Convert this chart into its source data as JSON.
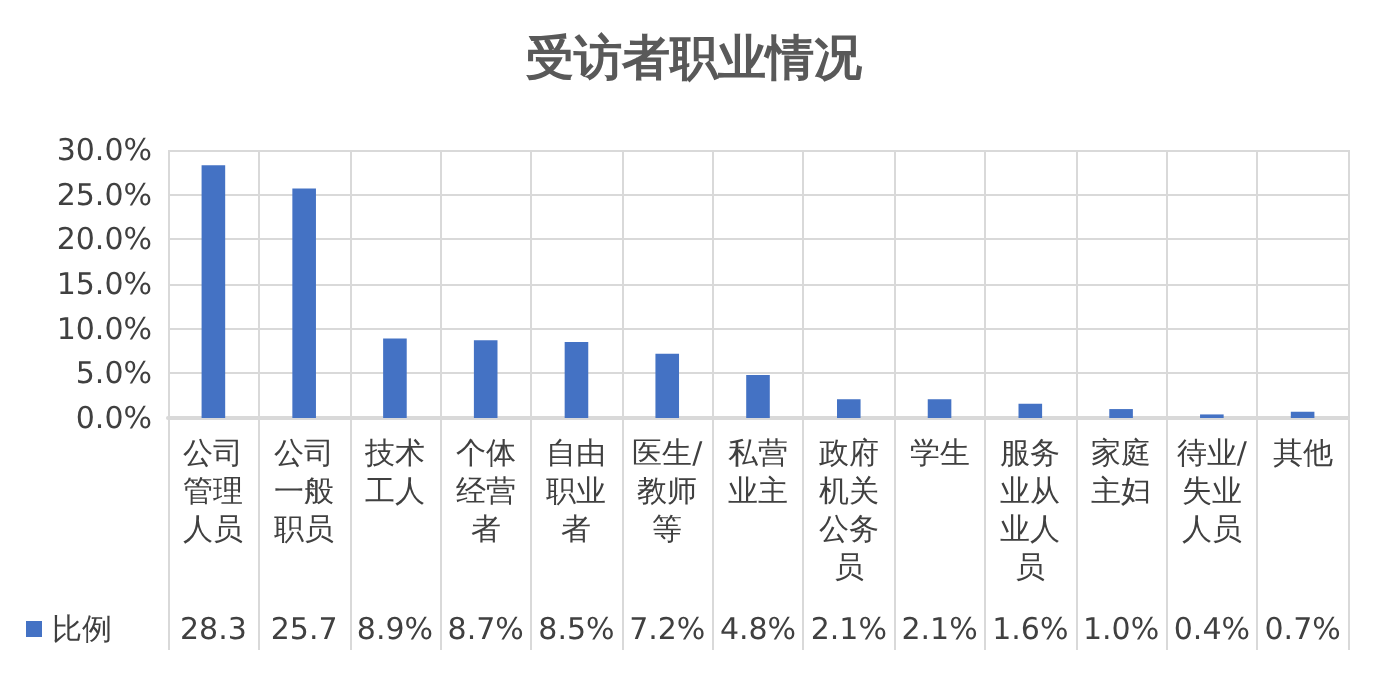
{
  "chart_data": {
    "type": "bar",
    "title": "受访者职业情况",
    "categories": [
      "公司管理人员",
      "公司一般职员",
      "技术工人",
      "个体经营者",
      "自由职业者",
      "医生/教师等",
      "私营业主",
      "政府机关公务员",
      "学生",
      "服务业从业人员",
      "家庭主妇",
      "待业/失业人员",
      "其他"
    ],
    "series": [
      {
        "name": "比例",
        "color": "#4472c4",
        "values": [
          28.3,
          25.7,
          8.9,
          8.7,
          8.5,
          7.2,
          4.8,
          2.1,
          2.1,
          1.6,
          1.0,
          0.4,
          0.7
        ],
        "value_labels": [
          "28.3",
          "25.7",
          "8.9%",
          "8.7%",
          "8.5%",
          "7.2%",
          "4.8%",
          "2.1%",
          "2.1%",
          "1.6%",
          "1.0%",
          "0.4%",
          "0.7%"
        ]
      }
    ],
    "ylim": [
      0,
      30
    ],
    "yticks": [
      {
        "value": 0,
        "label": "0.0%"
      },
      {
        "value": 5,
        "label": "5.0%"
      },
      {
        "value": 10,
        "label": "10.0%"
      },
      {
        "value": 15,
        "label": "15.0%"
      },
      {
        "value": 20,
        "label": "20.0%"
      },
      {
        "value": 25,
        "label": "25.0%"
      },
      {
        "value": 30,
        "label": "30.0%"
      }
    ],
    "grid": true,
    "legend": "bottom left"
  }
}
